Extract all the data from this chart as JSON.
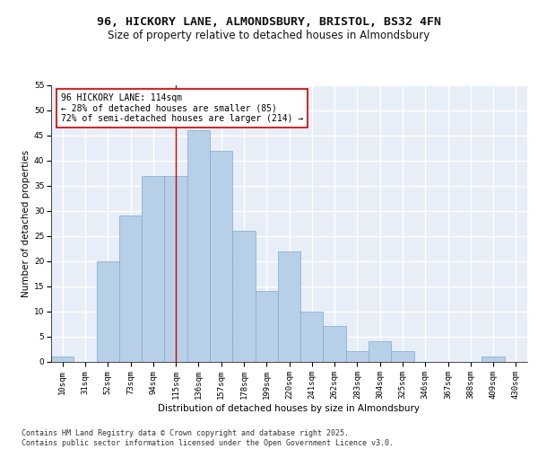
{
  "title1": "96, HICKORY LANE, ALMONDSBURY, BRISTOL, BS32 4FN",
  "title2": "Size of property relative to detached houses in Almondsbury",
  "xlabel": "Distribution of detached houses by size in Almondsbury",
  "ylabel": "Number of detached properties",
  "categories": [
    "10sqm",
    "31sqm",
    "52sqm",
    "73sqm",
    "94sqm",
    "115sqm",
    "136sqm",
    "157sqm",
    "178sqm",
    "199sqm",
    "220sqm",
    "241sqm",
    "262sqm",
    "283sqm",
    "304sqm",
    "325sqm",
    "346sqm",
    "367sqm",
    "388sqm",
    "409sqm",
    "430sqm"
  ],
  "values": [
    1,
    0,
    20,
    29,
    37,
    37,
    46,
    42,
    26,
    14,
    22,
    10,
    7,
    2,
    4,
    2,
    0,
    0,
    0,
    1,
    0
  ],
  "bar_color": "#b8cfe8",
  "bar_edge_color": "#7aaad0",
  "marker_line_color": "#cc0000",
  "annotation_text": "96 HICKORY LANE: 114sqm\n← 28% of detached houses are smaller (85)\n72% of semi-detached houses are larger (214) →",
  "annotation_box_color": "#ffffff",
  "annotation_box_edge": "#cc0000",
  "ylim": [
    0,
    55
  ],
  "yticks": [
    0,
    5,
    10,
    15,
    20,
    25,
    30,
    35,
    40,
    45,
    50,
    55
  ],
  "background_color": "#e8eef8",
  "fig_background": "#ffffff",
  "footer_text": "Contains HM Land Registry data © Crown copyright and database right 2025.\nContains public sector information licensed under the Open Government Licence v3.0.",
  "grid_color": "#ffffff",
  "title_fontsize": 9.5,
  "subtitle_fontsize": 8.5,
  "axis_label_fontsize": 7.5,
  "tick_fontsize": 6.5,
  "annotation_fontsize": 7,
  "footer_fontsize": 6
}
